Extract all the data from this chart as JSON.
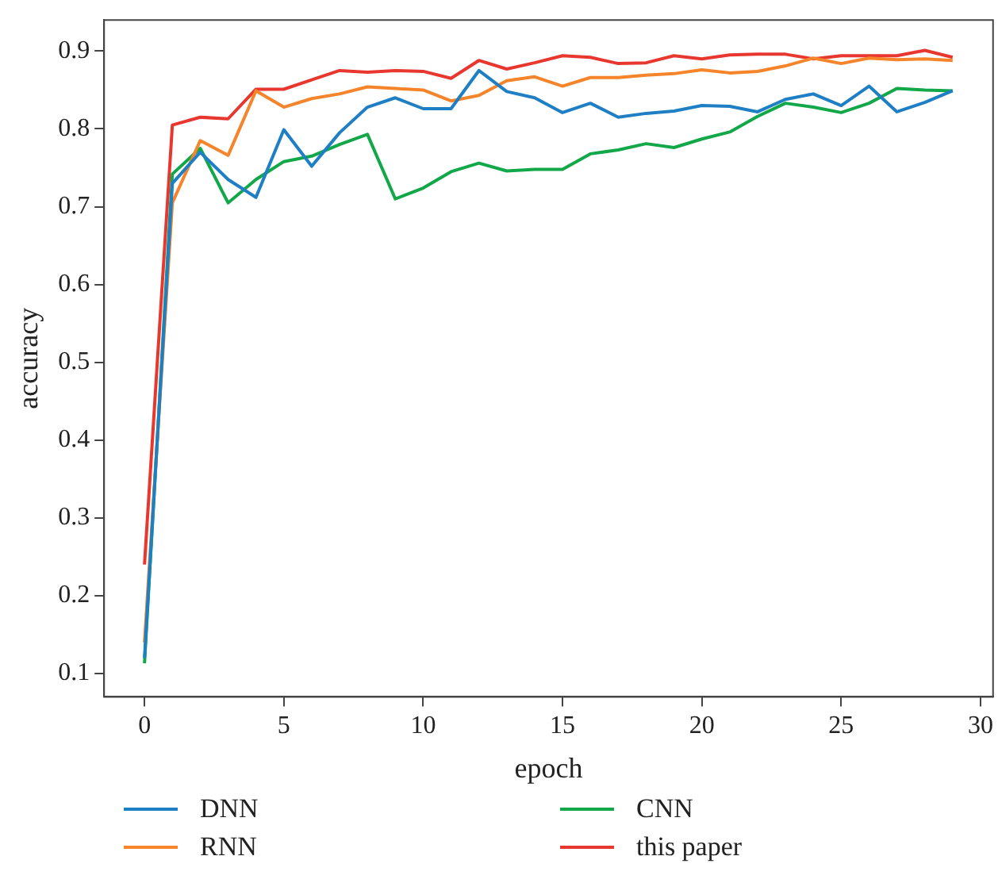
{
  "chart_data": {
    "type": "line",
    "xlabel": "epoch",
    "ylabel": "accuracy",
    "x": [
      0,
      1,
      2,
      3,
      4,
      5,
      6,
      7,
      8,
      9,
      10,
      11,
      12,
      13,
      14,
      15,
      16,
      17,
      18,
      19,
      20,
      21,
      22,
      23,
      24,
      25,
      26,
      27,
      28,
      29
    ],
    "xlim": [
      -1.45,
      30.45
    ],
    "xticks": [
      0,
      5,
      10,
      15,
      20,
      25,
      30
    ],
    "ylim": [
      0.07,
      0.94
    ],
    "yticks": [
      0.1,
      0.2,
      0.3,
      0.4,
      0.5,
      0.6,
      0.7,
      0.8,
      0.9
    ],
    "grid": false,
    "legend": "bottom",
    "marker": "none",
    "line_style": "solid",
    "series": [
      {
        "name": "DNN",
        "color": "#1f7fc4",
        "values": [
          0.12,
          0.73,
          0.77,
          0.735,
          0.712,
          0.799,
          0.752,
          0.795,
          0.828,
          0.84,
          0.826,
          0.826,
          0.875,
          0.848,
          0.84,
          0.821,
          0.833,
          0.815,
          0.82,
          0.823,
          0.83,
          0.829,
          0.822,
          0.838,
          0.845,
          0.83,
          0.855,
          0.822,
          0.834,
          0.849
        ]
      },
      {
        "name": "RNN",
        "color": "#f5842b",
        "values": [
          0.14,
          0.705,
          0.785,
          0.766,
          0.849,
          0.828,
          0.839,
          0.845,
          0.854,
          0.852,
          0.85,
          0.836,
          0.843,
          0.862,
          0.867,
          0.855,
          0.866,
          0.866,
          0.869,
          0.871,
          0.876,
          0.872,
          0.874,
          0.881,
          0.891,
          0.884,
          0.891,
          0.889,
          0.89,
          0.888
        ]
      },
      {
        "name": "CNN",
        "color": "#12a84a",
        "values": [
          0.113,
          0.742,
          0.775,
          0.705,
          0.735,
          0.758,
          0.765,
          0.78,
          0.793,
          0.71,
          0.724,
          0.745,
          0.756,
          0.746,
          0.748,
          0.748,
          0.768,
          0.773,
          0.781,
          0.776,
          0.787,
          0.796,
          0.816,
          0.833,
          0.828,
          0.821,
          0.833,
          0.852,
          0.85,
          0.849
        ]
      },
      {
        "name": "this paper",
        "color": "#e8372f",
        "values": [
          0.24,
          0.805,
          0.815,
          0.813,
          0.851,
          0.851,
          0.863,
          0.875,
          0.873,
          0.875,
          0.874,
          0.865,
          0.888,
          0.877,
          0.885,
          0.894,
          0.892,
          0.884,
          0.885,
          0.894,
          0.89,
          0.895,
          0.896,
          0.896,
          0.89,
          0.894,
          0.894,
          0.894,
          0.901,
          0.892
        ]
      }
    ]
  }
}
